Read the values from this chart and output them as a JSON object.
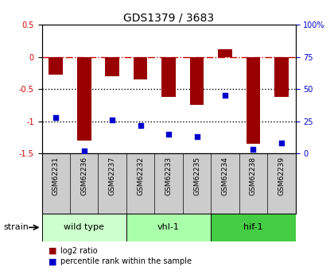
{
  "title": "GDS1379 / 3683",
  "samples": [
    "GSM62231",
    "GSM62236",
    "GSM62237",
    "GSM62232",
    "GSM62233",
    "GSM62235",
    "GSM62234",
    "GSM62238",
    "GSM62239"
  ],
  "log2_ratio": [
    -0.28,
    -1.3,
    -0.3,
    -0.35,
    -0.62,
    -0.75,
    0.12,
    -1.35,
    -0.62
  ],
  "percentile_rank": [
    28,
    2,
    26,
    22,
    15,
    13,
    45,
    3,
    8
  ],
  "ylim_left": [
    -1.5,
    0.5
  ],
  "ylim_right": [
    0,
    100
  ],
  "left_ticks": [
    -1.5,
    -1.0,
    -0.5,
    0.0,
    0.5
  ],
  "left_tick_labels": [
    "-1.5",
    "-1",
    "-0.5",
    "0",
    "0.5"
  ],
  "right_ticks": [
    0,
    25,
    50,
    75,
    100
  ],
  "right_tick_labels": [
    "0",
    "25",
    "50",
    "75",
    "100%"
  ],
  "hlines": [
    0.0,
    -0.5,
    -1.0
  ],
  "bar_color": "#990000",
  "dot_color": "#0000cc",
  "hline_color_zero": "#cc0000",
  "hline_color_other": "#000000",
  "groups": [
    {
      "label": "wild type",
      "start": 0,
      "end": 3,
      "color": "#ccffcc"
    },
    {
      "label": "vhl-1",
      "start": 3,
      "end": 6,
      "color": "#aaffaa"
    },
    {
      "label": "hif-1",
      "start": 6,
      "end": 9,
      "color": "#44cc44"
    }
  ],
  "strain_label": "strain",
  "legend_items": [
    {
      "label": "log2 ratio",
      "color": "#990000"
    },
    {
      "label": "percentile rank within the sample",
      "color": "#0000cc"
    }
  ],
  "bar_width": 0.5,
  "label_bg": "#cccccc",
  "plot_bg": "#ffffff"
}
